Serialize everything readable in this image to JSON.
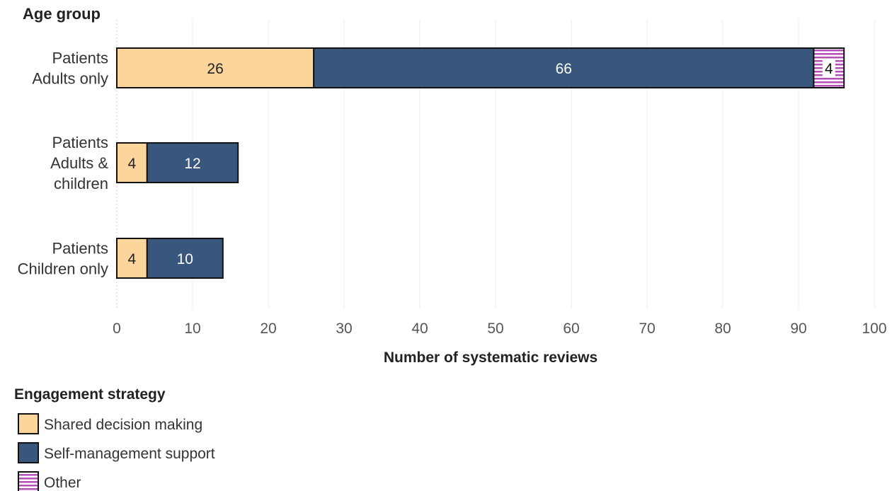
{
  "chart_data": {
    "type": "bar",
    "orientation": "horizontal",
    "stacked": true,
    "ylabel": "Age group",
    "xlabel": "Number of systematic reviews",
    "xlim": [
      0,
      100
    ],
    "xticks": [
      0,
      10,
      20,
      30,
      40,
      50,
      60,
      70,
      80,
      90,
      100
    ],
    "grid": true,
    "legend_position": "bottom-left",
    "categories": [
      [
        "Patients",
        "Adults only"
      ],
      [
        "Patients",
        "Adults &",
        "children"
      ],
      [
        "Patients",
        "Children only"
      ]
    ],
    "series": [
      {
        "name": "Shared decision making",
        "values": [
          26,
          4,
          4
        ],
        "color": "#fcd59d",
        "label_color": "#222222"
      },
      {
        "name": "Self-management support",
        "values": [
          66,
          12,
          10
        ],
        "color": "#39577c",
        "label_color": "#ffffff"
      },
      {
        "name": "Other",
        "values": [
          4,
          0,
          0
        ],
        "color": "#b34fb5",
        "pattern": "horizontal-stripes",
        "label_color": "#111111"
      }
    ],
    "legend_title": "Engagement strategy"
  }
}
